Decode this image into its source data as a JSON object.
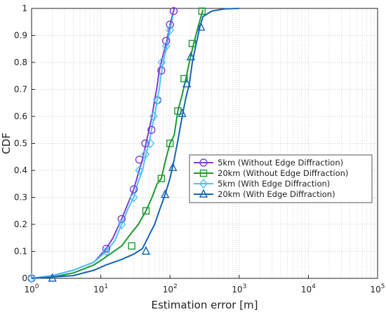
{
  "chart_data": {
    "type": "line",
    "xlabel": "Estimation error [m]",
    "ylabel": "CDF",
    "xscale": "log",
    "xlim": [
      1,
      100000
    ],
    "ylim": [
      0,
      1
    ],
    "grid": true,
    "legend_position": "center-right",
    "x_ticks": [
      {
        "label": "10",
        "exp": "0",
        "value": 1
      },
      {
        "label": "10",
        "exp": "1",
        "value": 10
      },
      {
        "label": "10",
        "exp": "2",
        "value": 100
      },
      {
        "label": "10",
        "exp": "3",
        "value": 1000
      },
      {
        "label": "10",
        "exp": "4",
        "value": 10000
      },
      {
        "label": "10",
        "exp": "5",
        "value": 100000
      }
    ],
    "y_ticks": [
      "0",
      "0.1",
      "0.2",
      "0.3",
      "0.4",
      "0.5",
      "0.6",
      "0.7",
      "0.8",
      "0.9",
      "1"
    ],
    "series": [
      {
        "name": "5km (Without Edge Diffraction)",
        "color": "#7b3fd6",
        "marker": "circle",
        "x": [
          1,
          2,
          4,
          8,
          12,
          15,
          20,
          25,
          30,
          35,
          40,
          45,
          50,
          55,
          60,
          65,
          70,
          80,
          90,
          100,
          110,
          115
        ],
        "y": [
          0,
          0.01,
          0.03,
          0.06,
          0.11,
          0.15,
          0.22,
          0.28,
          0.33,
          0.39,
          0.44,
          0.5,
          0.55,
          0.6,
          0.66,
          0.71,
          0.77,
          0.83,
          0.88,
          0.94,
          0.98,
          1.0
        ],
        "marker_x": [
          1,
          12,
          20,
          30,
          36,
          44,
          54,
          66,
          75,
          88,
          100,
          113
        ],
        "marker_y": [
          0,
          0.11,
          0.22,
          0.33,
          0.44,
          0.5,
          0.55,
          0.66,
          0.77,
          0.88,
          0.94,
          0.99
        ]
      },
      {
        "name": "20km (Without Edge Diffraction)",
        "color": "#1a9a2e",
        "marker": "square",
        "x": [
          1,
          2,
          4,
          8,
          12,
          20,
          28,
          35,
          45,
          55,
          65,
          75,
          85,
          100,
          115,
          130,
          150,
          170,
          190,
          220,
          260,
          300
        ],
        "y": [
          0,
          0.005,
          0.02,
          0.05,
          0.08,
          0.12,
          0.17,
          0.2,
          0.25,
          0.3,
          0.35,
          0.37,
          0.43,
          0.5,
          0.53,
          0.62,
          0.68,
          0.74,
          0.8,
          0.87,
          0.94,
          0.995
        ],
        "marker_x": [
          28,
          45,
          75,
          100,
          130,
          160,
          210,
          290
        ],
        "marker_y": [
          0.12,
          0.25,
          0.37,
          0.5,
          0.62,
          0.74,
          0.87,
          0.99
        ]
      },
      {
        "name": "5km (With Edge Diffraction)",
        "color": "#4ec3ee",
        "marker": "diamond",
        "x": [
          1,
          2,
          4,
          8,
          12,
          16,
          20,
          25,
          30,
          35,
          40,
          45,
          50,
          55,
          60,
          65,
          70,
          75,
          80,
          90,
          100,
          110
        ],
        "y": [
          0,
          0.01,
          0.03,
          0.06,
          0.1,
          0.14,
          0.2,
          0.26,
          0.3,
          0.36,
          0.4,
          0.46,
          0.5,
          0.56,
          0.6,
          0.66,
          0.7,
          0.76,
          0.8,
          0.86,
          0.92,
          0.97
        ],
        "marker_x": [
          1,
          12,
          20,
          30,
          36,
          44,
          52,
          58,
          66,
          76,
          88,
          100
        ],
        "marker_y": [
          0,
          0.1,
          0.2,
          0.3,
          0.4,
          0.46,
          0.5,
          0.6,
          0.66,
          0.8,
          0.86,
          0.92
        ]
      },
      {
        "name": "20km (With Edge Diffraction)",
        "color": "#1464b4",
        "marker": "triangle",
        "x": [
          1,
          2,
          4,
          8,
          12,
          20,
          30,
          40,
          50,
          60,
          70,
          85,
          100,
          115,
          130,
          150,
          170,
          190,
          210,
          240,
          270,
          300,
          400,
          600,
          1000
        ],
        "y": [
          0,
          0.005,
          0.01,
          0.03,
          0.05,
          0.07,
          0.09,
          0.11,
          0.16,
          0.2,
          0.25,
          0.31,
          0.37,
          0.44,
          0.51,
          0.6,
          0.67,
          0.72,
          0.8,
          0.87,
          0.93,
          0.97,
          0.99,
          0.998,
          1.0
        ],
        "marker_x": [
          2,
          45,
          85,
          110,
          150,
          175,
          200,
          280
        ],
        "marker_y": [
          0,
          0.1,
          0.31,
          0.41,
          0.61,
          0.72,
          0.82,
          0.93
        ]
      }
    ]
  }
}
